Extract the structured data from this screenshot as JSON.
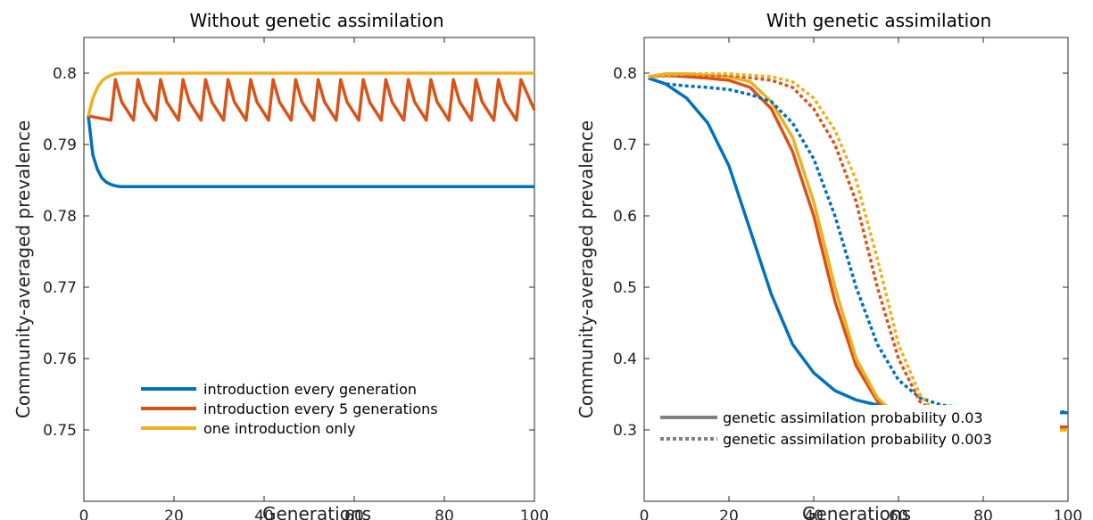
{
  "chart_data": [
    {
      "type": "line",
      "title": "Without genetic assimilation",
      "xlabel": "Generations",
      "ylabel": "Community-averaged prevalence",
      "xlim": [
        0,
        100
      ],
      "ylim": [
        0.74,
        0.805
      ],
      "xticks": [
        0,
        20,
        40,
        60,
        80,
        100
      ],
      "yticks": [
        0.75,
        0.76,
        0.77,
        0.78,
        0.79,
        0.8
      ],
      "ytick_labels": [
        "0.75",
        "0.76",
        "0.77",
        "0.78",
        "0.79",
        "0.8"
      ],
      "legend_position": "bottom-center",
      "series": [
        {
          "name": "introduction every generation",
          "color": "#0072BD",
          "dash": "solid",
          "x": [
            1,
            2,
            3,
            4,
            5,
            6,
            7,
            8,
            10,
            15,
            20,
            40,
            60,
            80,
            100
          ],
          "y": [
            0.794,
            0.7885,
            0.7865,
            0.7853,
            0.7847,
            0.7844,
            0.7842,
            0.7841,
            0.7841,
            0.7841,
            0.7841,
            0.7841,
            0.7841,
            0.7841,
            0.7841
          ]
        },
        {
          "name": "introduction every 5 generations",
          "color": "#D95319",
          "dash": "solid",
          "sawtooth": {
            "start": 1,
            "start_value": 0.794,
            "period": 5,
            "trough": 0.7934,
            "peak": 0.7991
          }
        },
        {
          "name": "one introduction only",
          "color": "#EDB120",
          "dash": "solid",
          "x": [
            1,
            2,
            3,
            4,
            5,
            6,
            7,
            8,
            9,
            10,
            15,
            20,
            40,
            60,
            80,
            100
          ],
          "y": [
            0.794,
            0.7965,
            0.798,
            0.7989,
            0.7994,
            0.7997,
            0.7999,
            0.8,
            0.8,
            0.8,
            0.8,
            0.8,
            0.8,
            0.8,
            0.8,
            0.8
          ]
        }
      ]
    },
    {
      "type": "line",
      "title": "With genetic assimilation",
      "xlabel": "Generations",
      "ylabel": "Community-averaged prevalence",
      "xlim": [
        0,
        100
      ],
      "ylim": [
        0.2,
        0.85
      ],
      "xticks": [
        0,
        20,
        40,
        60,
        80,
        100
      ],
      "yticks": [
        0.3,
        0.4,
        0.5,
        0.6,
        0.7,
        0.8
      ],
      "ytick_labels": [
        "0.3",
        "0.4",
        "0.5",
        "0.6",
        "0.7",
        "0.8"
      ],
      "legend_position": "bottom-right",
      "series": [
        {
          "color": "#0072BD",
          "dash": "solid",
          "x": [
            1,
            5,
            10,
            15,
            20,
            25,
            30,
            35,
            40,
            45,
            50,
            55,
            60,
            70,
            80,
            90,
            100
          ],
          "y": [
            0.793,
            0.785,
            0.765,
            0.73,
            0.67,
            0.58,
            0.49,
            0.42,
            0.38,
            0.355,
            0.342,
            0.335,
            0.331,
            0.328,
            0.326,
            0.325,
            0.324
          ]
        },
        {
          "color": "#D95319",
          "dash": "solid",
          "x": [
            1,
            5,
            10,
            15,
            20,
            25,
            30,
            35,
            40,
            45,
            50,
            55,
            60,
            65,
            70,
            80,
            90,
            100
          ],
          "y": [
            0.795,
            0.797,
            0.795,
            0.793,
            0.79,
            0.78,
            0.75,
            0.69,
            0.6,
            0.48,
            0.39,
            0.34,
            0.32,
            0.31,
            0.307,
            0.305,
            0.304,
            0.304
          ]
        },
        {
          "color": "#EDB120",
          "dash": "solid",
          "x": [
            1,
            5,
            10,
            15,
            20,
            25,
            30,
            35,
            40,
            45,
            50,
            55,
            60,
            65,
            70,
            80,
            90,
            100
          ],
          "y": [
            0.795,
            0.799,
            0.799,
            0.797,
            0.795,
            0.788,
            0.76,
            0.71,
            0.62,
            0.5,
            0.4,
            0.345,
            0.318,
            0.306,
            0.302,
            0.3,
            0.3,
            0.3
          ]
        },
        {
          "color": "#0072BD",
          "dash": "dotted",
          "x": [
            1,
            5,
            10,
            15,
            20,
            25,
            30,
            35,
            40,
            45,
            50,
            55,
            60,
            65,
            70,
            80,
            90,
            100
          ],
          "y": [
            0.793,
            0.785,
            0.782,
            0.78,
            0.777,
            0.77,
            0.76,
            0.73,
            0.68,
            0.6,
            0.5,
            0.42,
            0.37,
            0.345,
            0.335,
            0.328,
            0.326,
            0.325
          ]
        },
        {
          "color": "#D95319",
          "dash": "dotted",
          "x": [
            1,
            10,
            20,
            30,
            35,
            40,
            45,
            50,
            55,
            60,
            65,
            70,
            75,
            80,
            90,
            100
          ],
          "y": [
            0.795,
            0.797,
            0.797,
            0.79,
            0.78,
            0.75,
            0.7,
            0.62,
            0.5,
            0.4,
            0.34,
            0.318,
            0.31,
            0.306,
            0.304,
            0.304
          ]
        },
        {
          "color": "#EDB120",
          "dash": "dotted",
          "x": [
            1,
            10,
            20,
            30,
            35,
            40,
            45,
            50,
            55,
            60,
            65,
            70,
            75,
            80,
            90,
            100
          ],
          "y": [
            0.795,
            0.799,
            0.799,
            0.795,
            0.788,
            0.765,
            0.72,
            0.65,
            0.54,
            0.42,
            0.35,
            0.315,
            0.305,
            0.302,
            0.3,
            0.3
          ]
        }
      ],
      "legend": [
        {
          "label": "genetic assimilation probability 0.03",
          "color": "#808080",
          "dash": "solid"
        },
        {
          "label": "genetic assimilation probability 0.003",
          "color": "#808080",
          "dash": "dotted"
        }
      ]
    }
  ]
}
